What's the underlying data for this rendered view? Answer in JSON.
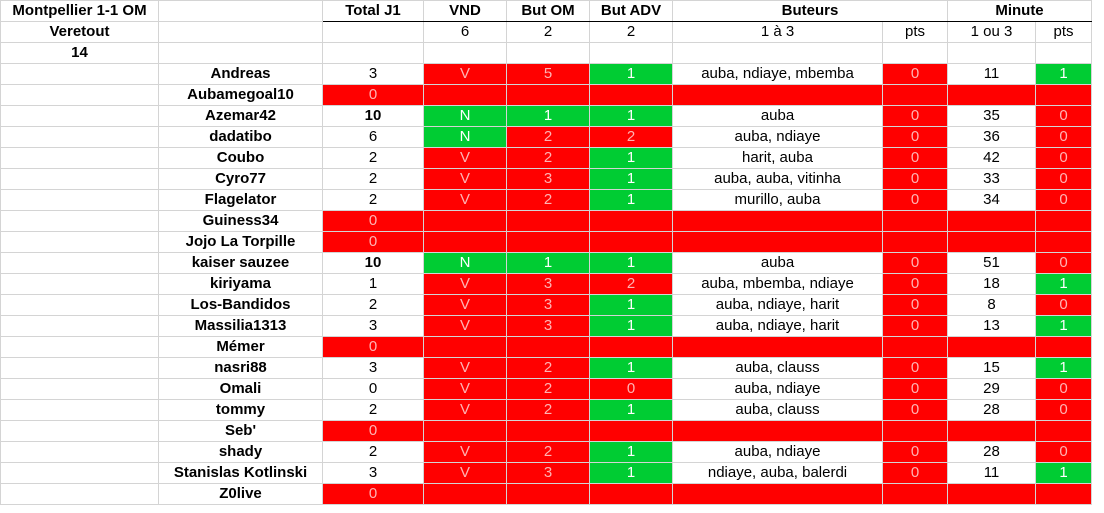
{
  "meta": {
    "match": "Montpellier 1-1 OM",
    "player": "Veretout",
    "player_num": "14"
  },
  "headers": {
    "total": "Total J1",
    "vnd": "VND",
    "but_om": "But OM",
    "but_adv": "But ADV",
    "buteurs": "Buteurs",
    "minute": "Minute"
  },
  "answers": {
    "vnd": "6",
    "but_om": "2",
    "but_adv": "2",
    "buteurs": "1 à 3",
    "buteurs_pts": "pts",
    "minute": "1 ou 3",
    "minute_pts": "pts"
  },
  "rows": [
    {
      "name": "Andreas",
      "total": "3",
      "total_bold": false,
      "vnd": "V",
      "vnd_c": "red",
      "om": "5",
      "om_c": "red",
      "adv": "1",
      "adv_c": "green",
      "buteurs": "auba, ndiaye, mbemba",
      "bpts": "0",
      "bpts_c": "red",
      "minute": "11",
      "mpts": "1",
      "mpts_c": "green",
      "empty": false
    },
    {
      "name": "Aubamegoal10",
      "total": "0",
      "total_c": "red",
      "empty": true
    },
    {
      "name": "Azemar42",
      "total": "10",
      "total_bold": true,
      "vnd": "N",
      "vnd_c": "green",
      "om": "1",
      "om_c": "green",
      "adv": "1",
      "adv_c": "green",
      "buteurs": "auba",
      "bpts": "0",
      "bpts_c": "red",
      "minute": "35",
      "mpts": "0",
      "mpts_c": "red",
      "empty": false
    },
    {
      "name": "dadatibo",
      "total": "6",
      "total_bold": false,
      "vnd": "N",
      "vnd_c": "green",
      "om": "2",
      "om_c": "red",
      "adv": "2",
      "adv_c": "red",
      "buteurs": "auba, ndiaye",
      "bpts": "0",
      "bpts_c": "red",
      "minute": "36",
      "mpts": "0",
      "mpts_c": "red",
      "empty": false
    },
    {
      "name": "Coubo",
      "total": "2",
      "total_bold": false,
      "vnd": "V",
      "vnd_c": "red",
      "om": "2",
      "om_c": "red",
      "adv": "1",
      "adv_c": "green",
      "buteurs": "harit, auba",
      "bpts": "0",
      "bpts_c": "red",
      "minute": "42",
      "mpts": "0",
      "mpts_c": "red",
      "empty": false
    },
    {
      "name": "Cyro77",
      "total": "2",
      "total_bold": false,
      "vnd": "V",
      "vnd_c": "red",
      "om": "3",
      "om_c": "red",
      "adv": "1",
      "adv_c": "green",
      "buteurs": "auba, auba, vitinha",
      "bpts": "0",
      "bpts_c": "red",
      "minute": "33",
      "mpts": "0",
      "mpts_c": "red",
      "empty": false
    },
    {
      "name": "Flagelator",
      "total": "2",
      "total_bold": false,
      "vnd": "V",
      "vnd_c": "red",
      "om": "2",
      "om_c": "red",
      "adv": "1",
      "adv_c": "green",
      "buteurs": "murillo, auba",
      "bpts": "0",
      "bpts_c": "red",
      "minute": "34",
      "mpts": "0",
      "mpts_c": "red",
      "empty": false
    },
    {
      "name": "Guiness34",
      "total": "0",
      "total_c": "red",
      "empty": true
    },
    {
      "name": "Jojo La Torpille",
      "total": "0",
      "total_c": "red",
      "empty": true
    },
    {
      "name": "kaiser sauzee",
      "total": "10",
      "total_bold": true,
      "vnd": "N",
      "vnd_c": "green",
      "om": "1",
      "om_c": "green",
      "adv": "1",
      "adv_c": "green",
      "buteurs": "auba",
      "bpts": "0",
      "bpts_c": "red",
      "minute": "51",
      "mpts": "0",
      "mpts_c": "red",
      "empty": false
    },
    {
      "name": "kiriyama",
      "total": "1",
      "total_bold": false,
      "vnd": "V",
      "vnd_c": "red",
      "om": "3",
      "om_c": "red",
      "adv": "2",
      "adv_c": "red",
      "buteurs": "auba, mbemba, ndiaye",
      "bpts": "0",
      "bpts_c": "red",
      "minute": "18",
      "mpts": "1",
      "mpts_c": "green",
      "empty": false
    },
    {
      "name": "Los-Bandidos",
      "total": "2",
      "total_bold": false,
      "vnd": "V",
      "vnd_c": "red",
      "om": "3",
      "om_c": "red",
      "adv": "1",
      "adv_c": "green",
      "buteurs": "auba, ndiaye, harit",
      "bpts": "0",
      "bpts_c": "red",
      "minute": "8",
      "mpts": "0",
      "mpts_c": "red",
      "empty": false
    },
    {
      "name": "Massilia1313",
      "total": "3",
      "total_bold": false,
      "vnd": "V",
      "vnd_c": "red",
      "om": "3",
      "om_c": "red",
      "adv": "1",
      "adv_c": "green",
      "buteurs": "auba, ndiaye, harit",
      "bpts": "0",
      "bpts_c": "red",
      "minute": "13",
      "mpts": "1",
      "mpts_c": "green",
      "empty": false
    },
    {
      "name": "Mémer",
      "total": "0",
      "total_c": "red",
      "empty": true
    },
    {
      "name": "nasri88",
      "total": "3",
      "total_bold": false,
      "vnd": "V",
      "vnd_c": "red",
      "om": "2",
      "om_c": "red",
      "adv": "1",
      "adv_c": "green",
      "buteurs": "auba, clauss",
      "bpts": "0",
      "bpts_c": "red",
      "minute": "15",
      "mpts": "1",
      "mpts_c": "green",
      "empty": false
    },
    {
      "name": "Omali",
      "total": "0",
      "total_bold": false,
      "vnd": "V",
      "vnd_c": "red",
      "om": "2",
      "om_c": "red",
      "adv": "0",
      "adv_c": "red",
      "buteurs": "auba, ndiaye",
      "bpts": "0",
      "bpts_c": "red",
      "minute": "29",
      "mpts": "0",
      "mpts_c": "red",
      "empty": false
    },
    {
      "name": "tommy",
      "total": "2",
      "total_bold": false,
      "vnd": "V",
      "vnd_c": "red",
      "om": "2",
      "om_c": "red",
      "adv": "1",
      "adv_c": "green",
      "buteurs": "auba, clauss",
      "bpts": "0",
      "bpts_c": "red",
      "minute": "28",
      "mpts": "0",
      "mpts_c": "red",
      "empty": false
    },
    {
      "name": "Seb'",
      "total": "0",
      "total_c": "red",
      "empty": true
    },
    {
      "name": "shady",
      "total": "2",
      "total_bold": false,
      "vnd": "V",
      "vnd_c": "red",
      "om": "2",
      "om_c": "red",
      "adv": "1",
      "adv_c": "green",
      "buteurs": "auba, ndiaye",
      "bpts": "0",
      "bpts_c": "red",
      "minute": "28",
      "mpts": "0",
      "mpts_c": "red",
      "empty": false
    },
    {
      "name": "Stanislas Kotlinski",
      "total": "3",
      "total_bold": false,
      "vnd": "V",
      "vnd_c": "red",
      "om": "3",
      "om_c": "red",
      "adv": "1",
      "adv_c": "green",
      "buteurs": "ndiaye, auba, balerdi",
      "bpts": "0",
      "bpts_c": "red",
      "minute": "11",
      "mpts": "1",
      "mpts_c": "green",
      "empty": false
    },
    {
      "name": "Z0live",
      "total": "0",
      "total_c": "red",
      "empty": true
    }
  ]
}
